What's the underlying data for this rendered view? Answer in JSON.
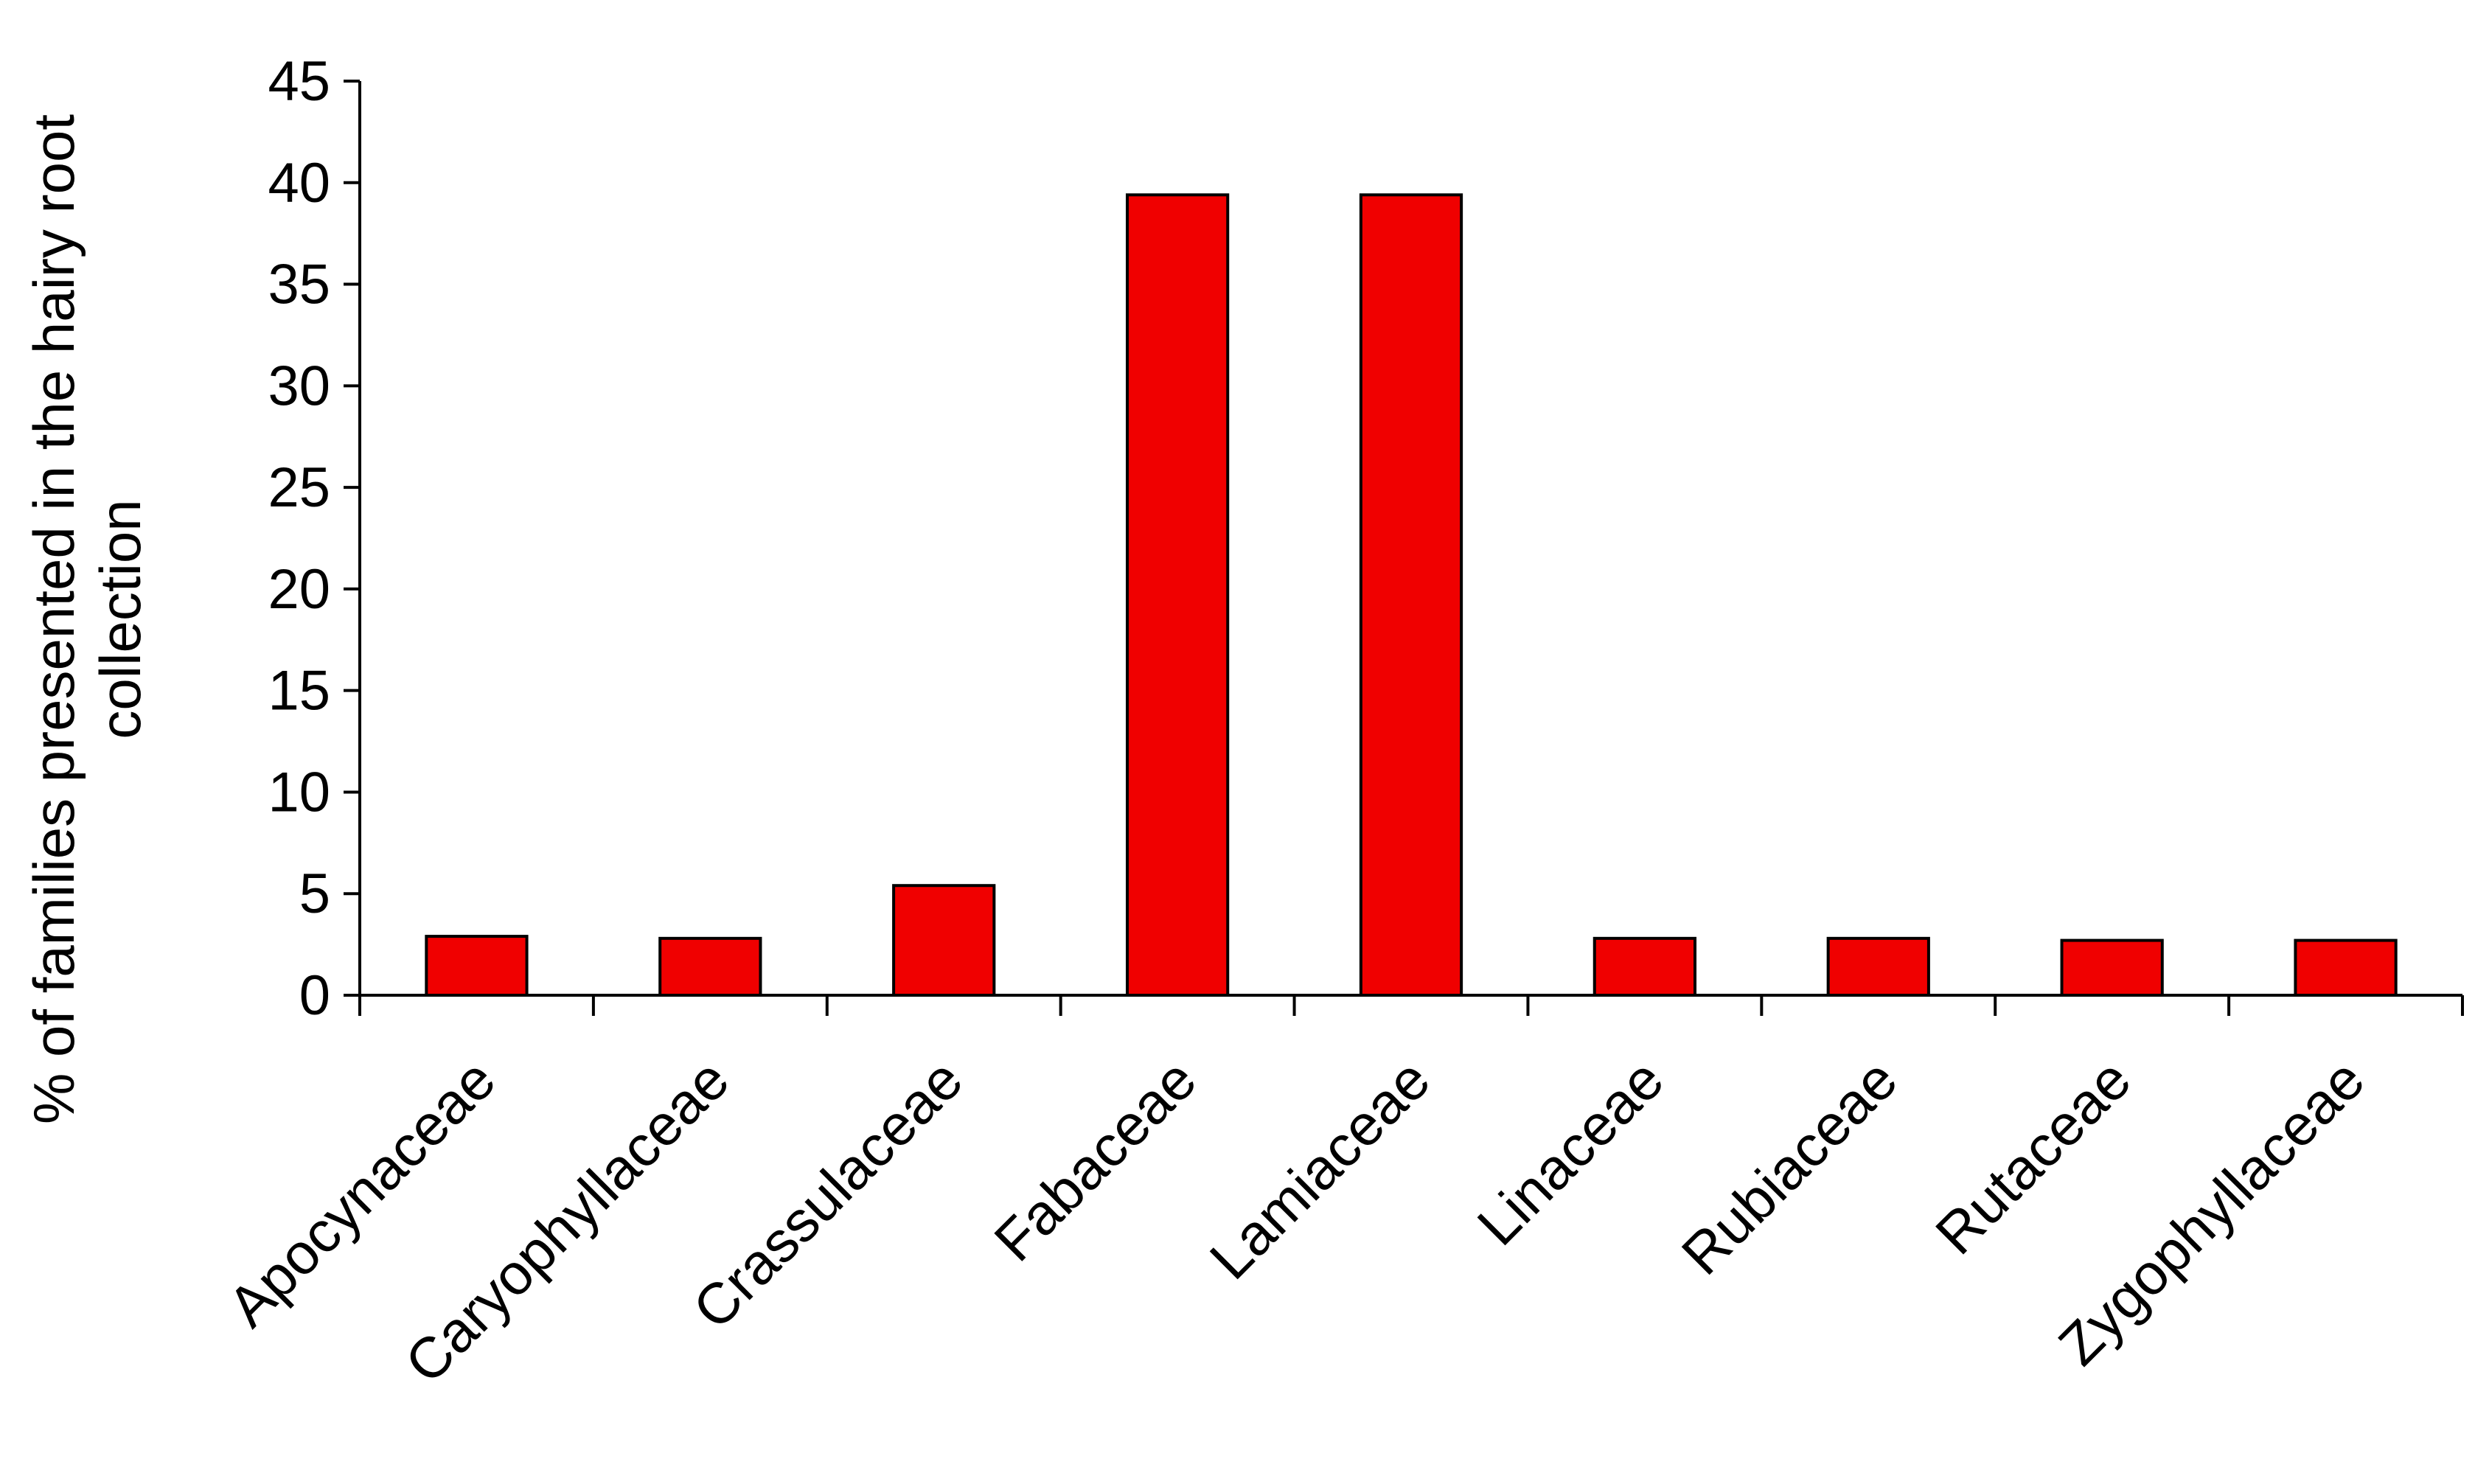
{
  "chart_data": {
    "type": "bar",
    "title": "",
    "xlabel": "",
    "ylabel_lines": [
      "% of families presented  in the hairy root",
      "collection"
    ],
    "categories": [
      "Apocynaceae",
      "Caryophyllaceae",
      "Crassulaceae",
      "Fabaceae",
      "Lamiaceae",
      "Linaceae",
      "Rubiaceae",
      "Rutaceae",
      "Zygophyllaceae"
    ],
    "series": [
      {
        "values": [
          2.9,
          2.8,
          5.4,
          39.4,
          39.4,
          2.8,
          2.8,
          2.7,
          2.7
        ],
        "color": "#f00000"
      }
    ],
    "ylim": [
      0,
      45
    ],
    "yticks": [
      0,
      5,
      10,
      15,
      20,
      25,
      30,
      35,
      40,
      45
    ],
    "grid": false,
    "legend": "none"
  }
}
